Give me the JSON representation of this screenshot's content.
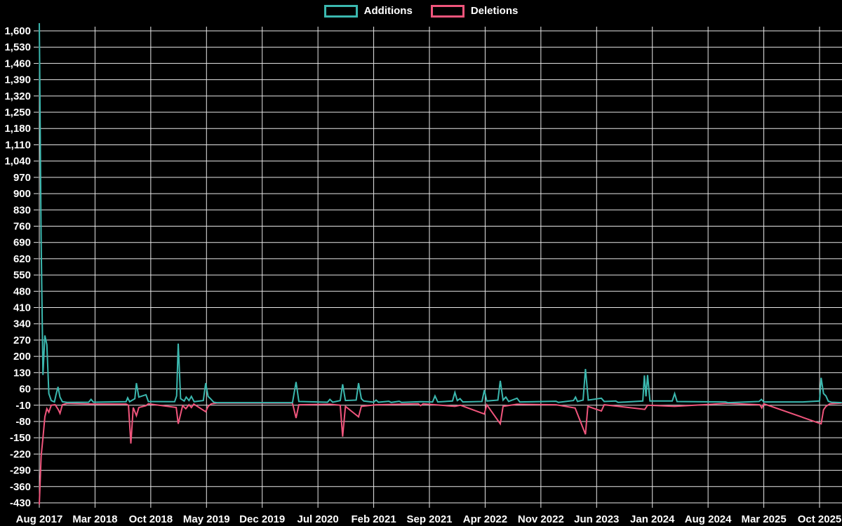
{
  "chart_data": {
    "type": "line",
    "title": "",
    "xlabel": "",
    "ylabel": "",
    "background_color": "#000000",
    "grid_color": "#e8e8e8",
    "grid": true,
    "legend_position": "top-center",
    "x_unit": "months since Aug 2017",
    "x_axis": {
      "tick_labels": [
        "Aug 2017",
        "Mar 2018",
        "Oct 2018",
        "May 2019",
        "Dec 2019",
        "Jul 2020",
        "Feb 2021",
        "Sep 2021",
        "Apr 2022",
        "Nov 2022",
        "Jun 2023",
        "Jan 2024",
        "Aug 2024",
        "Mar 2025",
        "Oct 2025"
      ],
      "months_per_tick": 7,
      "range_months": [
        0,
        100.8
      ]
    },
    "y_axis": {
      "min": -430,
      "max": 1600,
      "step": 70,
      "tick_values": [
        1600,
        1530,
        1460,
        1390,
        1320,
        1250,
        1180,
        1110,
        1040,
        970,
        900,
        830,
        760,
        690,
        620,
        550,
        480,
        410,
        340,
        270,
        200,
        130,
        60,
        -10,
        -80,
        -150,
        -220,
        -290,
        -360,
        -430
      ],
      "tick_labels": [
        "1,600",
        "1,530",
        "1,460",
        "1,390",
        "1,320",
        "1,250",
        "1,180",
        "1,110",
        "1,040",
        "970",
        "900",
        "830",
        "760",
        "690",
        "620",
        "550",
        "480",
        "410",
        "340",
        "270",
        "200",
        "130",
        "60",
        "-10",
        "-80",
        "-150",
        "-220",
        "-290",
        "-360",
        "-430"
      ]
    },
    "series": [
      {
        "name": "Additions",
        "color": "#3bb8af",
        "points": [
          [
            0,
            1640
          ],
          [
            0.23,
            705
          ],
          [
            0.46,
            120
          ],
          [
            0.7,
            290
          ],
          [
            0.95,
            250
          ],
          [
            1.2,
            40
          ],
          [
            1.5,
            10
          ],
          [
            1.9,
            4
          ],
          [
            2.1,
            35
          ],
          [
            2.35,
            69
          ],
          [
            2.6,
            25
          ],
          [
            2.9,
            5
          ],
          [
            3.5,
            2
          ],
          [
            6.2,
            3
          ],
          [
            6.5,
            15
          ],
          [
            6.8,
            3
          ],
          [
            10.9,
            5
          ],
          [
            11.1,
            22
          ],
          [
            11.35,
            5
          ],
          [
            12.0,
            18
          ],
          [
            12.2,
            85
          ],
          [
            12.5,
            25
          ],
          [
            13.4,
            35
          ],
          [
            13.7,
            6
          ],
          [
            17.0,
            5
          ],
          [
            17.25,
            30
          ],
          [
            17.45,
            255
          ],
          [
            17.75,
            18
          ],
          [
            18.2,
            8
          ],
          [
            18.45,
            25
          ],
          [
            18.8,
            10
          ],
          [
            19.1,
            28
          ],
          [
            19.45,
            5
          ],
          [
            20.6,
            10
          ],
          [
            20.9,
            85
          ],
          [
            21.2,
            28
          ],
          [
            21.5,
            18
          ],
          [
            21.9,
            3
          ],
          [
            22.3,
            1
          ],
          [
            31.8,
            1
          ],
          [
            32.25,
            90
          ],
          [
            32.6,
            6
          ],
          [
            36.2,
            3
          ],
          [
            36.5,
            15
          ],
          [
            36.85,
            3
          ],
          [
            37.8,
            10
          ],
          [
            38.1,
            80
          ],
          [
            38.45,
            10
          ],
          [
            39.8,
            12
          ],
          [
            40.1,
            85
          ],
          [
            40.45,
            18
          ],
          [
            40.75,
            8
          ],
          [
            42.0,
            3
          ],
          [
            42.3,
            12
          ],
          [
            42.6,
            3
          ],
          [
            43.9,
            7
          ],
          [
            44.2,
            2
          ],
          [
            45.2,
            7
          ],
          [
            45.5,
            2
          ],
          [
            47.9,
            5
          ],
          [
            49.4,
            4
          ],
          [
            49.7,
            30
          ],
          [
            50.05,
            4
          ],
          [
            51.9,
            8
          ],
          [
            52.2,
            45
          ],
          [
            52.5,
            10
          ],
          [
            52.85,
            18
          ],
          [
            53.2,
            4
          ],
          [
            55.6,
            6
          ],
          [
            55.9,
            55
          ],
          [
            56.2,
            8
          ],
          [
            57.6,
            12
          ],
          [
            57.9,
            95
          ],
          [
            58.25,
            12
          ],
          [
            58.6,
            25
          ],
          [
            58.95,
            6
          ],
          [
            60.0,
            20
          ],
          [
            60.35,
            4
          ],
          [
            64.9,
            7
          ],
          [
            65.2,
            2
          ],
          [
            67.1,
            10
          ],
          [
            67.35,
            25
          ],
          [
            67.6,
            6
          ],
          [
            68.3,
            12
          ],
          [
            68.6,
            146
          ],
          [
            68.95,
            12
          ],
          [
            70.6,
            20
          ],
          [
            70.95,
            6
          ],
          [
            72.4,
            8
          ],
          [
            72.7,
            2
          ],
          [
            75.8,
            8
          ],
          [
            76.0,
            118
          ],
          [
            76.2,
            28
          ],
          [
            76.4,
            120
          ],
          [
            76.7,
            8
          ],
          [
            79.5,
            8
          ],
          [
            79.8,
            40
          ],
          [
            80.1,
            6
          ],
          [
            86.2,
            4
          ],
          [
            86.5,
            1
          ],
          [
            90.4,
            6
          ],
          [
            90.7,
            15
          ],
          [
            91.0,
            4
          ],
          [
            95.9,
            4
          ],
          [
            98.0,
            8
          ],
          [
            98.2,
            108
          ],
          [
            98.5,
            40
          ],
          [
            98.8,
            30
          ],
          [
            99.1,
            7
          ],
          [
            99.5,
            3
          ],
          [
            100.8,
            1
          ]
        ]
      },
      {
        "name": "Deletions",
        "color": "#f0557c",
        "points": [
          [
            0,
            -437
          ],
          [
            0.23,
            -230
          ],
          [
            0.46,
            -150
          ],
          [
            0.7,
            -60
          ],
          [
            0.95,
            -25
          ],
          [
            1.2,
            -40
          ],
          [
            1.5,
            -10
          ],
          [
            2.0,
            -8
          ],
          [
            2.4,
            -30
          ],
          [
            2.6,
            -45
          ],
          [
            2.9,
            -8
          ],
          [
            3.5,
            -2
          ],
          [
            6.5,
            -5
          ],
          [
            10.9,
            -5
          ],
          [
            11.2,
            -10
          ],
          [
            11.5,
            -175
          ],
          [
            11.8,
            -20
          ],
          [
            12.2,
            -55
          ],
          [
            12.5,
            -20
          ],
          [
            13.4,
            -12
          ],
          [
            13.7,
            -4
          ],
          [
            17.2,
            -20
          ],
          [
            17.45,
            -90
          ],
          [
            17.7,
            -55
          ],
          [
            18.0,
            -12
          ],
          [
            18.4,
            -25
          ],
          [
            18.8,
            -8
          ],
          [
            19.1,
            -20
          ],
          [
            19.4,
            -5
          ],
          [
            20.9,
            -38
          ],
          [
            21.2,
            -15
          ],
          [
            21.6,
            -4
          ],
          [
            22.3,
            -1
          ],
          [
            31.8,
            -1
          ],
          [
            32.25,
            -65
          ],
          [
            32.6,
            -8
          ],
          [
            36.5,
            -6
          ],
          [
            37.8,
            -10
          ],
          [
            38.1,
            -145
          ],
          [
            38.45,
            -15
          ],
          [
            40.1,
            -60
          ],
          [
            40.45,
            -15
          ],
          [
            42.3,
            -8
          ],
          [
            47.6,
            -4
          ],
          [
            47.9,
            -12
          ],
          [
            48.2,
            -4
          ],
          [
            49.7,
            -8
          ],
          [
            52.2,
            -15
          ],
          [
            52.9,
            -10
          ],
          [
            55.9,
            -48
          ],
          [
            56.2,
            -8
          ],
          [
            57.9,
            -90
          ],
          [
            58.25,
            -15
          ],
          [
            60.0,
            -6
          ],
          [
            64.9,
            -8
          ],
          [
            67.3,
            -22
          ],
          [
            68.6,
            -135
          ],
          [
            68.9,
            -15
          ],
          [
            70.6,
            -35
          ],
          [
            70.95,
            -8
          ],
          [
            76.05,
            -28
          ],
          [
            76.4,
            -10
          ],
          [
            79.8,
            -15
          ],
          [
            86.4,
            -2
          ],
          [
            90.5,
            -8
          ],
          [
            90.75,
            -22
          ],
          [
            91.0,
            -4
          ],
          [
            98.2,
            -90
          ],
          [
            98.5,
            -30
          ],
          [
            98.8,
            -15
          ],
          [
            99.3,
            -4
          ],
          [
            100.8,
            -1
          ]
        ]
      }
    ],
    "legend": [
      {
        "label": "Additions"
      },
      {
        "label": "Deletions"
      }
    ]
  }
}
